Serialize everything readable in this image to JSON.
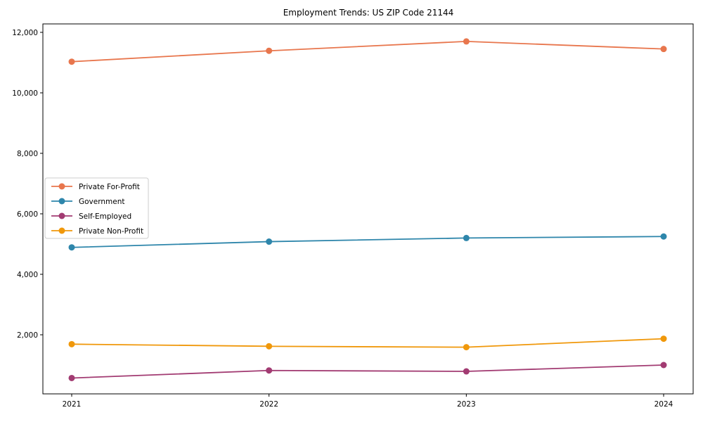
{
  "chart_data": {
    "type": "line",
    "title": "Employment Trends: US ZIP Code 21144",
    "x": [
      "2021",
      "2022",
      "2023",
      "2024"
    ],
    "series": [
      {
        "name": "Private For-Profit",
        "color": "#E8764D",
        "values": [
          11030,
          11390,
          11700,
          11450
        ]
      },
      {
        "name": "Government",
        "color": "#2E86AB",
        "values": [
          4890,
          5080,
          5200,
          5250
        ]
      },
      {
        "name": "Self-Employed",
        "color": "#A23B72",
        "values": [
          570,
          820,
          790,
          1000
        ]
      },
      {
        "name": "Private Non-Profit",
        "color": "#F0980B",
        "values": [
          1690,
          1620,
          1590,
          1870
        ]
      }
    ],
    "xlabel": "",
    "ylabel": "",
    "ylim": [
      0,
      12300
    ],
    "yticks": [
      2000,
      4000,
      6000,
      8000,
      10000,
      12000
    ],
    "grid": false,
    "marker": "circle",
    "legend_position": "center-left",
    "axis_color": "#000000",
    "background_color": "#ffffff",
    "legend_border_color": "#cccccc"
  }
}
